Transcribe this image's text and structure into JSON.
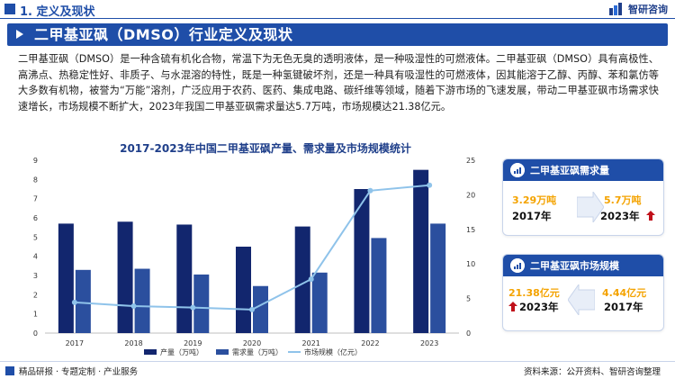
{
  "header": {
    "section_label": "1. 定义及现状",
    "logo_text": "智研咨询"
  },
  "banner": {
    "title": "二甲基亚砜（DMSO）行业定义及现状"
  },
  "paragraph": "二甲基亚砜（DMSO）是一种含硫有机化合物，常温下为无色无臭的透明液体，是一种吸湿性的可燃液体。二甲基亚砜（DMSO）具有高极性、高沸点、热稳定性好、非质子、与水混溶的特性，既是一种氢键破坏剂，还是一种具有吸湿性的可燃液体，因其能溶于乙醇、丙醇、苯和氯仿等大多数有机物，被誉为“万能”溶剂，广泛应用于农药、医药、集成电路、碳纤维等领域，随着下游市场的飞速发展，带动二甲基亚砜市场需求快速增长，市场规模不断扩大，2023年我国二甲基亚砜需求量达5.7万吨，市场规模达21.38亿元。",
  "chart_data": {
    "type": "bar",
    "title": "2017-2023年中国二甲基亚砜产量、需求量及市场规模统计",
    "categories": [
      "2017",
      "2018",
      "2019",
      "2020",
      "2021",
      "2022",
      "2023"
    ],
    "y_left_ticks": [
      "0",
      "1",
      "2",
      "3",
      "4",
      "5",
      "6",
      "7",
      "8",
      "9"
    ],
    "y_right_ticks": [
      "0",
      "5",
      "10",
      "15",
      "20",
      "25"
    ],
    "ylim_left": [
      0,
      9
    ],
    "ylim_right": [
      0,
      25
    ],
    "series": [
      {
        "name": "产量（万吨）",
        "kind": "bar",
        "axis": "left",
        "color": "#12266e",
        "values": [
          5.7,
          5.8,
          5.65,
          4.5,
          5.55,
          7.5,
          8.5
        ]
      },
      {
        "name": "需求量（万吨）",
        "kind": "bar",
        "axis": "left",
        "color": "#2b4f9e",
        "values": [
          3.29,
          3.35,
          3.05,
          2.45,
          3.15,
          4.95,
          5.7
        ]
      },
      {
        "name": "市场规模（亿元）",
        "kind": "line",
        "axis": "right",
        "color": "#8fc3ea",
        "values": [
          4.44,
          3.9,
          3.7,
          3.4,
          7.8,
          20.6,
          21.38
        ]
      }
    ],
    "legend_position": "bottom",
    "grid": false
  },
  "cards": [
    {
      "title": "二甲基亚砜需求量",
      "icon": "trend-chart-icon",
      "from_value": "3.29万吨",
      "from_year": "2017年",
      "to_value": "5.7万吨",
      "to_year": "2023年"
    },
    {
      "title": "二甲基亚砜市场规模",
      "icon": "trend-chart-icon",
      "from_value": "4.44亿元",
      "from_year": "2017年",
      "to_value": "21.38亿元",
      "to_year": "2023年"
    }
  ],
  "footer": {
    "left": "精品研报 · 专题定制 · 产业服务",
    "right": "资料来源：公开资料、智研咨询整理"
  },
  "colors": {
    "brand_blue": "#1f4ea8",
    "accent_orange": "#f4a300",
    "up_red": "#c0101a"
  }
}
